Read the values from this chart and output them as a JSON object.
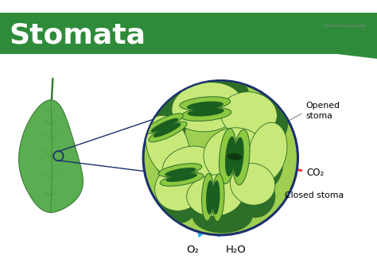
{
  "title": "Stomata",
  "title_color": "#ffffff",
  "title_fontsize": 26,
  "bg_color": "#ffffff",
  "header_color": "#2e8b3a",
  "leaf_color_main": "#5aad50",
  "leaf_color_dark": "#3a7d35",
  "leaf_vein_color": "#4a9a45",
  "circle_bg_light": "#9ecf50",
  "circle_dark_green": "#2d6e28",
  "cell_light": "#c8e87a",
  "cell_medium": "#7ab840",
  "cell_border": "#2d6e28",
  "guard_outer": "#8cc840",
  "guard_inner_dark": "#1a5e20",
  "stoma_pore": "#0d3a10",
  "circle_border_color": "#1a2e6e",
  "label_opened": "Opened\nstoma",
  "label_closed": "Closed stoma",
  "label_co2": "CO₂",
  "label_o2": "O₂",
  "label_h2o": "H₂O",
  "arrow_blue": "#29b6f6",
  "arrow_red": "#e53935",
  "line_color": "#888888",
  "logo_text": "ScienceFacts.net",
  "logo_color": "#888888"
}
